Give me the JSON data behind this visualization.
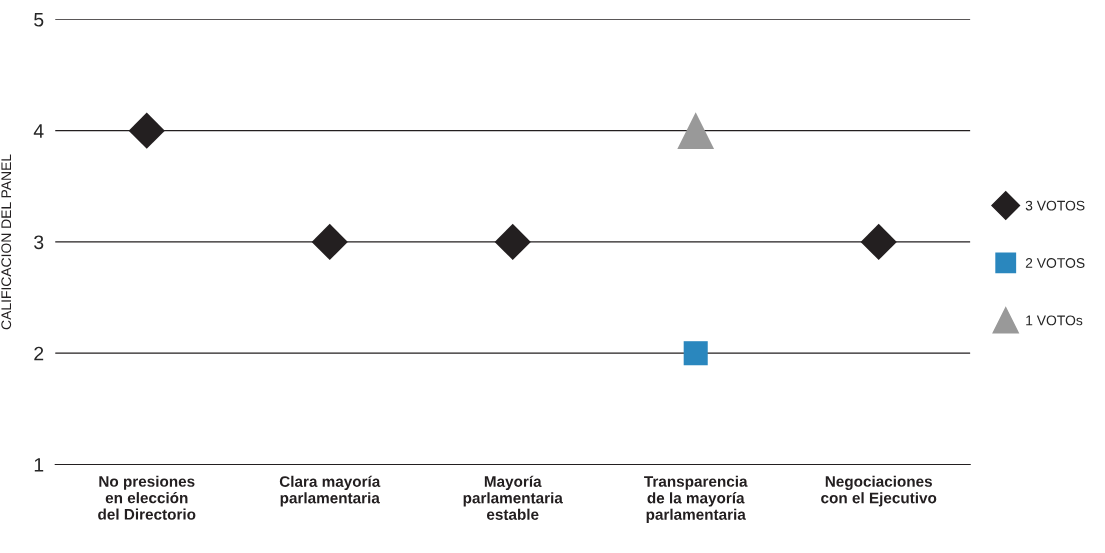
{
  "chart_data": {
    "type": "scatter",
    "ylabel": "CALIFICACION DEL PANEL",
    "categories": [
      "No presiones\nen elección\ndel Directorio",
      "Clara mayoría\nparlamentaria",
      "Mayoría\nparlamentaria\nestable",
      "Transparencia\nde la mayoría\nparlamentaria",
      "Negociaciones\ncon el Ejecutivo"
    ],
    "series": [
      {
        "name": "3 VOTOS",
        "color": "#231f20",
        "marker": "diamond",
        "values": [
          4,
          3,
          3,
          null,
          3
        ]
      },
      {
        "name": "2 VOTOS",
        "color": "#2a87be",
        "marker": "square",
        "values": [
          null,
          null,
          null,
          2,
          null
        ]
      },
      {
        "name": "1 VOTOs",
        "color": "#999999",
        "marker": "triangle",
        "values": [
          null,
          null,
          null,
          4,
          null
        ]
      }
    ],
    "ylim": [
      1,
      5
    ],
    "yticks": [
      1,
      2,
      3,
      4,
      5
    ],
    "grid": "y",
    "legend": "right"
  }
}
